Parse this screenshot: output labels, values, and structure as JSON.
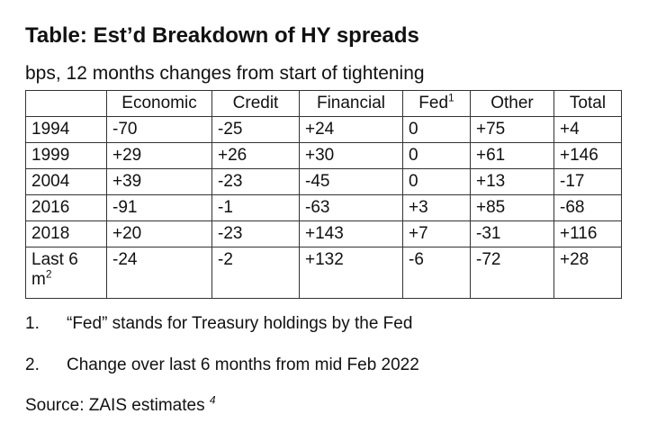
{
  "header": {
    "title": "Table: Est’d Breakdown of HY spreads",
    "subtitle": "bps, 12 months changes from start of tightening"
  },
  "table": {
    "columns": [
      "",
      "Economic",
      "Credit",
      "Financial",
      {
        "text": "Fed",
        "sup": "1"
      },
      "Other",
      "Total"
    ],
    "rows": [
      [
        "1994",
        "-70",
        "-25",
        "+24",
        "0",
        "+75",
        "+4"
      ],
      [
        "1999",
        "+29",
        "+26",
        "+30",
        "0",
        "+61",
        "+146"
      ],
      [
        "2004",
        "+39",
        "-23",
        "-45",
        "0",
        "+13",
        "-17"
      ],
      [
        "2016",
        "-91",
        "-1",
        "-63",
        "+3",
        "+85",
        "-68"
      ],
      [
        "2018",
        "+20",
        "-23",
        "+143",
        "+7",
        "-31",
        "+116"
      ],
      [
        {
          "text": "Last 6 m",
          "sup": "2"
        },
        "-24",
        "-2",
        "+132",
        "-6",
        "-72",
        "+28"
      ]
    ]
  },
  "footnotes": [
    {
      "number": "1.",
      "text": "“Fed” stands for Treasury holdings by the Fed"
    },
    {
      "number": "2.",
      "text": "Change over last 6 months from mid Feb 2022"
    }
  ],
  "source": {
    "text": "Source: ZAIS estimates",
    "sup": "4"
  }
}
